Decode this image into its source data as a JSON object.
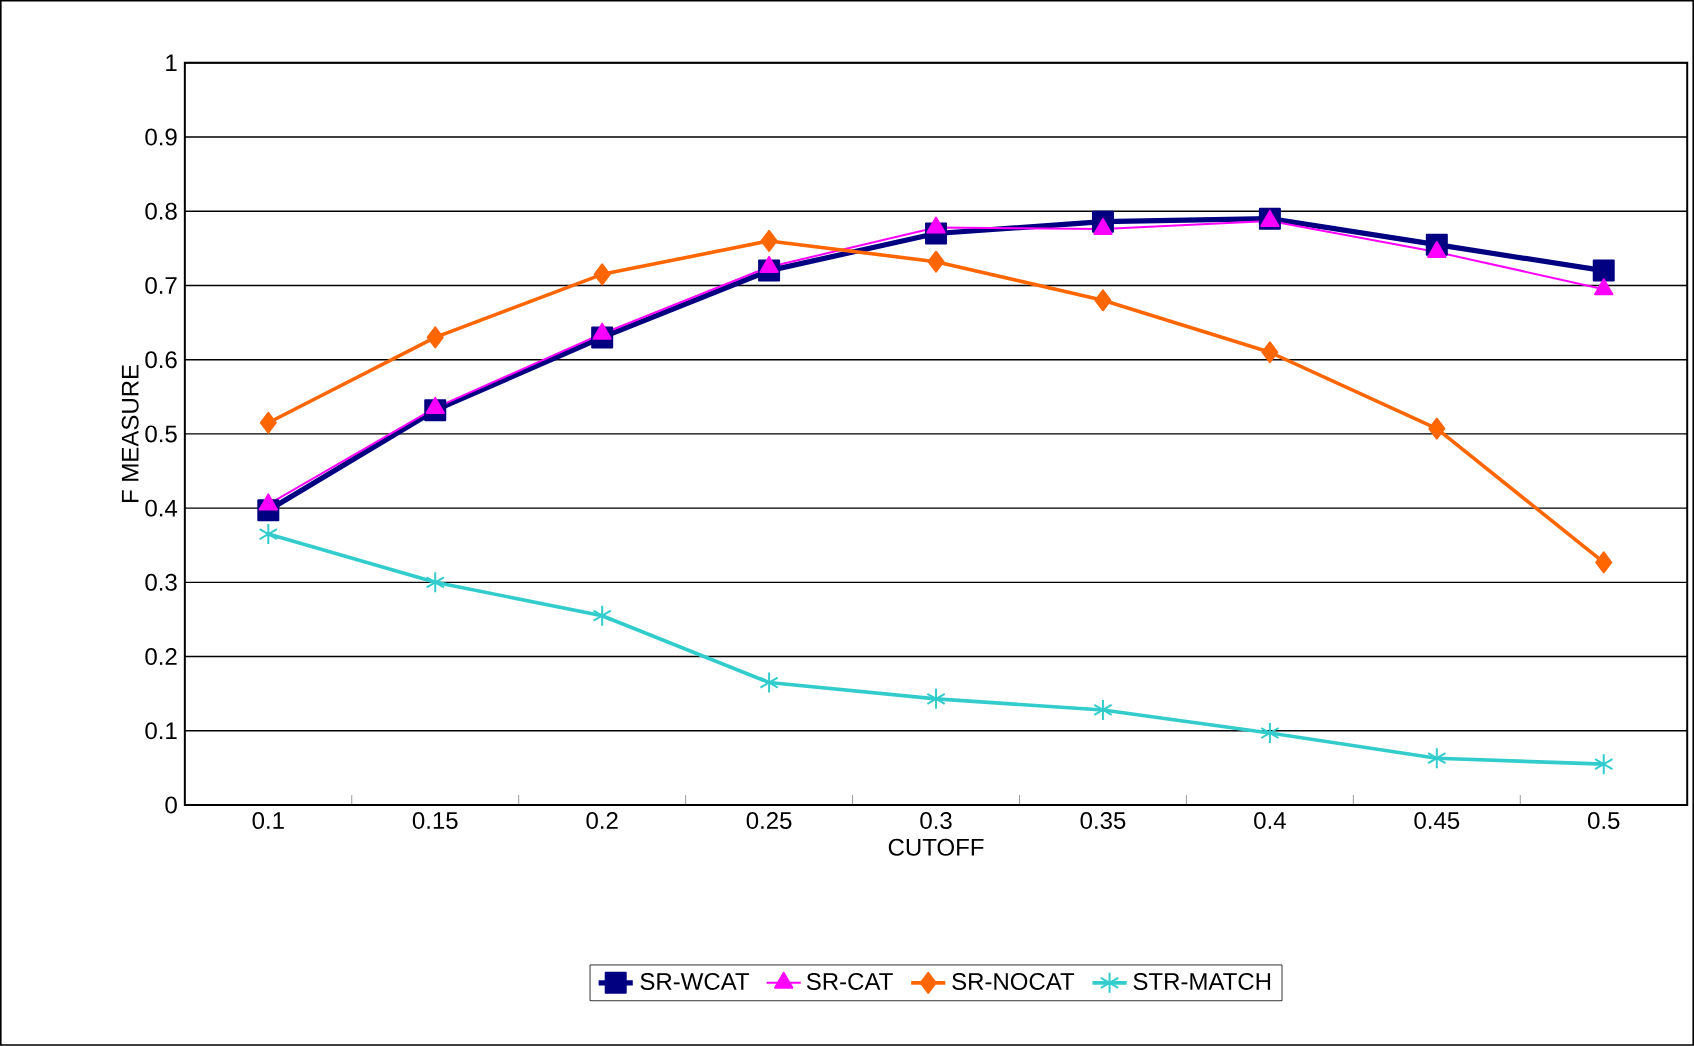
{
  "chart_data": {
    "type": "line",
    "xlabel": "CUTOFF",
    "ylabel": "F MEASURE",
    "categories": [
      "0.1",
      "0.15",
      "0.2",
      "0.25",
      "0.3",
      "0.35",
      "0.4",
      "0.45",
      "0.5"
    ],
    "series": [
      {
        "name": "SR-WCAT",
        "color": "#000080",
        "marker": "square",
        "values": [
          0.397,
          0.532,
          0.63,
          0.72,
          0.77,
          0.786,
          0.79,
          0.755,
          0.72
        ]
      },
      {
        "name": "SR-CAT",
        "color": "#ff00ff",
        "marker": "triangle",
        "values": [
          0.405,
          0.535,
          0.635,
          0.725,
          0.778,
          0.776,
          0.787,
          0.745,
          0.695
        ]
      },
      {
        "name": "SR-NOCAT",
        "color": "#ff6600",
        "marker": "diamond",
        "values": [
          0.515,
          0.63,
          0.715,
          0.76,
          0.732,
          0.68,
          0.61,
          0.507,
          0.327
        ]
      },
      {
        "name": "STR-MATCH",
        "color": "#33cccc",
        "marker": "cross",
        "values": [
          0.365,
          0.3,
          0.255,
          0.165,
          0.143,
          0.128,
          0.097,
          0.063,
          0.055
        ]
      }
    ],
    "ylim": [
      0,
      1
    ],
    "yticks": [
      0,
      0.1,
      0.2,
      0.3,
      0.4,
      0.5,
      0.6,
      0.7,
      0.8,
      0.9,
      1
    ],
    "grid": "y",
    "legend": "bottom",
    "line_style": "solid"
  }
}
